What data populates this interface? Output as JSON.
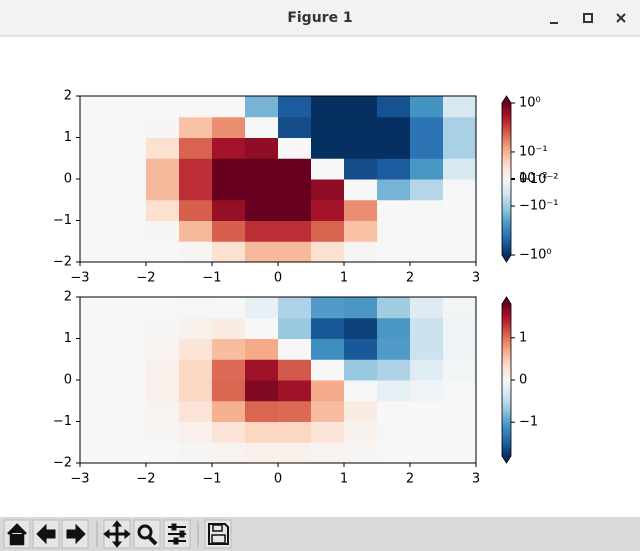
{
  "window": {
    "title": "Figure 1"
  },
  "chart_data": [
    {
      "type": "heatmap",
      "colormap": "RdBu_r",
      "norm": "symlog",
      "linthresh": 0.03,
      "linscale": 0.03,
      "clim": [
        -1,
        1
      ],
      "x": [
        -2.75,
        -2.25,
        -1.75,
        -1.25,
        -0.75,
        -0.25,
        0.25,
        0.75,
        1.25,
        1.75,
        2.25,
        2.75
      ],
      "y": [
        -1.75,
        -1.25,
        -0.75,
        -0.25,
        0.25,
        0.75,
        1.25,
        1.75
      ],
      "z": [
        [
          0,
          0,
          0,
          0.02,
          0.05,
          0.09,
          0.09,
          0.05,
          0.02,
          0,
          0,
          0
        ],
        [
          0,
          0,
          0.02,
          0.09,
          0.24,
          0.39,
          0.39,
          0.23,
          0.08,
          0.01,
          0,
          0
        ],
        [
          0,
          0.01,
          0.05,
          0.24,
          0.64,
          1.05,
          1.02,
          0.56,
          0.15,
          0,
          -0.01,
          0
        ],
        [
          0,
          0.01,
          0.09,
          0.39,
          1.05,
          1.68,
          1.53,
          0.68,
          0,
          -0.15,
          -0.08,
          -0.02
        ],
        [
          0,
          0.01,
          0.09,
          0.39,
          1.02,
          1.53,
          1.12,
          0,
          -0.68,
          -0.56,
          -0.23,
          -0.05
        ],
        [
          0,
          0.01,
          0.05,
          0.23,
          0.56,
          0.68,
          0,
          -1.12,
          -1.53,
          -1.02,
          -0.39,
          -0.09
        ],
        [
          0,
          0,
          0.02,
          0.08,
          0.15,
          0,
          -0.68,
          -1.53,
          -1.68,
          -1.05,
          -0.39,
          -0.09
        ],
        [
          0,
          0,
          0,
          0.01,
          0,
          -0.15,
          -0.56,
          -1.02,
          -1.05,
          -0.64,
          -0.24,
          -0.05
        ]
      ],
      "xlim": [
        -3,
        3
      ],
      "ylim": [
        -2,
        2
      ],
      "xticks": [
        {
          "value": -3,
          "label": "−3"
        },
        {
          "value": -2,
          "label": "−2"
        },
        {
          "value": -1,
          "label": "−1"
        },
        0,
        1,
        2,
        3
      ],
      "yticks": [
        {
          "value": -2,
          "label": "−2"
        },
        {
          "value": -1,
          "label": "−1"
        },
        0,
        1,
        2
      ],
      "cticks": [
        {
          "value": 1,
          "label": "10⁰"
        },
        {
          "value": 0.1,
          "label": "10⁻¹"
        },
        {
          "value": 0.01,
          "label": "10⁻²"
        },
        0,
        {
          "value": -0.01,
          "label": "−10⁻²"
        },
        {
          "value": -0.1,
          "label": "−10⁻¹"
        },
        {
          "value": -1,
          "label": "−10⁰"
        }
      ]
    },
    {
      "type": "heatmap",
      "colormap": "RdBu_r",
      "norm": "linear",
      "clim": [
        -1.8,
        1.8
      ],
      "x": [
        -2.75,
        -2.25,
        -1.75,
        -1.25,
        -0.75,
        -0.25,
        0.25,
        0.75,
        1.25,
        1.75,
        2.25,
        2.75
      ],
      "y": [
        -1.75,
        -1.25,
        -0.75,
        -0.25,
        0.25,
        0.75,
        1.25,
        1.75
      ],
      "z": [
        [
          0,
          0,
          0,
          0.02,
          0.05,
          0.09,
          0.09,
          0.05,
          0.02,
          0,
          0,
          0
        ],
        [
          0,
          0,
          0.02,
          0.09,
          0.24,
          0.39,
          0.39,
          0.23,
          0.08,
          0.01,
          0,
          0
        ],
        [
          0,
          0.01,
          0.05,
          0.24,
          0.64,
          1.05,
          1.02,
          0.56,
          0.15,
          0,
          -0.01,
          0
        ],
        [
          0,
          0.01,
          0.09,
          0.39,
          1.05,
          1.68,
          1.53,
          0.68,
          0,
          -0.15,
          -0.08,
          -0.02
        ],
        [
          0,
          0.01,
          0.09,
          0.39,
          1.02,
          1.53,
          1.12,
          0,
          -0.68,
          -0.56,
          -0.23,
          -0.05
        ],
        [
          0,
          0.01,
          0.05,
          0.23,
          0.56,
          0.68,
          0,
          -1.12,
          -1.53,
          -1.02,
          -0.39,
          -0.09
        ],
        [
          0,
          0,
          0.02,
          0.08,
          0.15,
          0,
          -0.68,
          -1.53,
          -1.68,
          -1.05,
          -0.39,
          -0.09
        ],
        [
          0,
          0,
          0,
          0.01,
          0,
          -0.15,
          -0.56,
          -1.02,
          -1.05,
          -0.64,
          -0.24,
          -0.05
        ]
      ],
      "xlim": [
        -3,
        3
      ],
      "ylim": [
        -2,
        2
      ],
      "xticks": [
        {
          "value": -3,
          "label": "−3"
        },
        {
          "value": -2,
          "label": "−2"
        },
        {
          "value": -1,
          "label": "−1"
        },
        0,
        1,
        2,
        3
      ],
      "yticks": [
        {
          "value": -2,
          "label": "−2"
        },
        {
          "value": -1,
          "label": "−1"
        },
        0,
        1,
        2
      ],
      "cticks": [
        {
          "value": -1,
          "label": "−1"
        },
        0,
        1
      ]
    }
  ]
}
